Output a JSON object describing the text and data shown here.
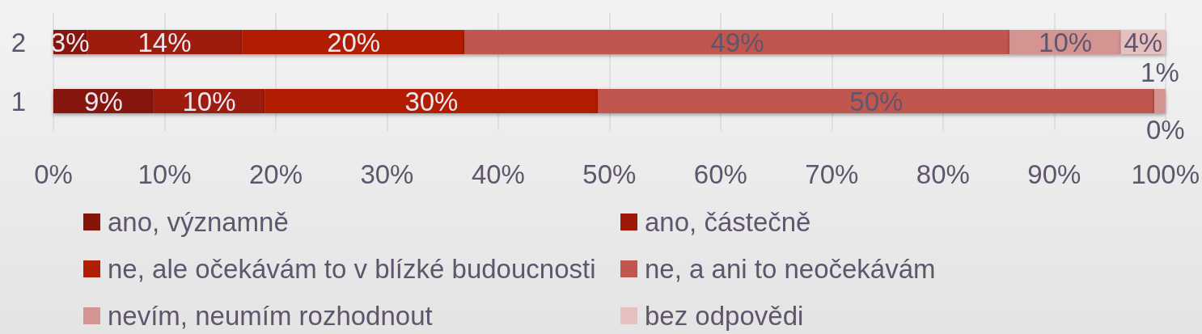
{
  "chart_data": {
    "type": "bar",
    "orientation": "horizontal",
    "stacked": true,
    "categories": [
      "2",
      "1"
    ],
    "series": [
      {
        "name": "ano, významně",
        "color": "#861509",
        "values": [
          3,
          9
        ],
        "value_labels": [
          "3%",
          "9%"
        ]
      },
      {
        "name": "ano, částečně",
        "color": "#9e1a08",
        "values": [
          14,
          10
        ],
        "value_labels": [
          "14%",
          "10%"
        ]
      },
      {
        "name": "ne, ale očekávám to v blízké budoucnosti",
        "color": "#b21d06",
        "values": [
          20,
          30
        ],
        "value_labels": [
          "20%",
          "30%"
        ]
      },
      {
        "name": "ne, a ani to neočekávám",
        "color": "#c0564e",
        "values": [
          49,
          50
        ],
        "value_labels": [
          "49%",
          "50%"
        ]
      },
      {
        "name": "nevím, neumím rozhodnout",
        "color": "#d49592",
        "values": [
          10,
          1
        ],
        "value_labels": [
          "10%",
          "1%"
        ]
      },
      {
        "name": "bez odpovědi",
        "color": "#e6c0bf",
        "values": [
          4,
          0
        ],
        "value_labels": [
          "4%",
          "0%"
        ]
      }
    ],
    "xlim": [
      0,
      100
    ],
    "xticks": [
      {
        "value": 0,
        "label": "0%"
      },
      {
        "value": 10,
        "label": "10%"
      },
      {
        "value": 20,
        "label": "20%"
      },
      {
        "value": 30,
        "label": "30%"
      },
      {
        "value": 40,
        "label": "40%"
      },
      {
        "value": 50,
        "label": "50%"
      },
      {
        "value": 60,
        "label": "60%"
      },
      {
        "value": 70,
        "label": "70%"
      },
      {
        "value": 80,
        "label": "80%"
      },
      {
        "value": 90,
        "label": "90%"
      },
      {
        "value": 100,
        "label": "100%"
      }
    ],
    "grid": "x",
    "legend": "bottom"
  }
}
